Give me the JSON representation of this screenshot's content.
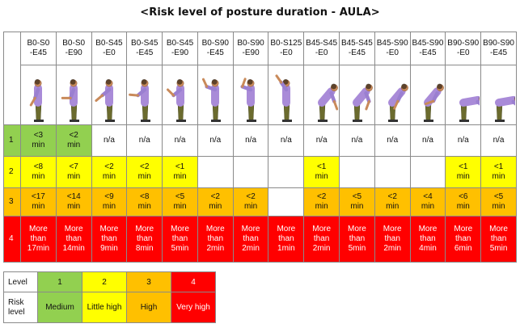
{
  "title": "<Risk level of posture duration - AULA>",
  "columns": [
    {
      "code": "B0-S0\n-E45"
    },
    {
      "code": "B0-S0\n-E90"
    },
    {
      "code": "B0-S45\n-E0"
    },
    {
      "code": "B0-S45\n-E45"
    },
    {
      "code": "B0-S45\n-E90"
    },
    {
      "code": "B0-S90\n-E45"
    },
    {
      "code": "B0-S90\n-E90"
    },
    {
      "code": "B0-S125\n-E0"
    },
    {
      "code": "B45-S45\n-E0"
    },
    {
      "code": "B45-S45\n-E45"
    },
    {
      "code": "B45-S90\n-E0"
    },
    {
      "code": "B45-S90\n-E45"
    },
    {
      "code": "B90-S90\n-E0"
    },
    {
      "code": "B90-S90\n-E45"
    }
  ],
  "rows": [
    {
      "level": "1",
      "cells": [
        {
          "text": "<3\nmin",
          "color": "#92d050"
        },
        {
          "text": "<2\nmin",
          "color": "#92d050"
        },
        {
          "text": "n/a",
          "color": "#ffffff"
        },
        {
          "text": "n/a",
          "color": "#ffffff"
        },
        {
          "text": "n/a",
          "color": "#ffffff"
        },
        {
          "text": "n/a",
          "color": "#ffffff"
        },
        {
          "text": "n/a",
          "color": "#ffffff"
        },
        {
          "text": "n/a",
          "color": "#ffffff"
        },
        {
          "text": "n/a",
          "color": "#ffffff"
        },
        {
          "text": "n/a",
          "color": "#ffffff"
        },
        {
          "text": "n/a",
          "color": "#ffffff"
        },
        {
          "text": "n/a",
          "color": "#ffffff"
        },
        {
          "text": "n/a",
          "color": "#ffffff"
        },
        {
          "text": "n/a",
          "color": "#ffffff"
        }
      ]
    },
    {
      "level": "2",
      "cells": [
        {
          "text": "<8\nmin",
          "color": "#ffff00"
        },
        {
          "text": "<7\nmin",
          "color": "#ffff00"
        },
        {
          "text": "<2\nmin",
          "color": "#ffff00"
        },
        {
          "text": "<2\nmin",
          "color": "#ffff00"
        },
        {
          "text": "<1\nmin",
          "color": "#ffff00"
        },
        {
          "text": "",
          "color": "#ffffff"
        },
        {
          "text": "",
          "color": "#ffffff"
        },
        {
          "text": "",
          "color": "#ffffff"
        },
        {
          "text": "<1\nmin",
          "color": "#ffff00"
        },
        {
          "text": "",
          "color": "#ffffff"
        },
        {
          "text": "",
          "color": "#ffffff"
        },
        {
          "text": "",
          "color": "#ffffff"
        },
        {
          "text": "<1\nmin",
          "color": "#ffff00"
        },
        {
          "text": "<1\nmin",
          "color": "#ffff00"
        }
      ]
    },
    {
      "level": "3",
      "cells": [
        {
          "text": "<17\nmin",
          "color": "#ffc000"
        },
        {
          "text": "<14\nmin",
          "color": "#ffc000"
        },
        {
          "text": "<9\nmin",
          "color": "#ffc000"
        },
        {
          "text": "<8\nmin",
          "color": "#ffc000"
        },
        {
          "text": "<5\nmin",
          "color": "#ffc000"
        },
        {
          "text": "<2\nmin",
          "color": "#ffc000"
        },
        {
          "text": "<2\nmin",
          "color": "#ffc000"
        },
        {
          "text": "",
          "color": "#ffffff"
        },
        {
          "text": "<2\nmin",
          "color": "#ffc000"
        },
        {
          "text": "<5\nmin",
          "color": "#ffc000"
        },
        {
          "text": "<2\nmin",
          "color": "#ffc000"
        },
        {
          "text": "<4\nmin",
          "color": "#ffc000"
        },
        {
          "text": "<6\nmin",
          "color": "#ffc000"
        },
        {
          "text": "<5\nmin",
          "color": "#ffc000"
        }
      ]
    },
    {
      "level": "4",
      "cells": [
        {
          "text": "More\nthan\n17min",
          "color": "#ff0000"
        },
        {
          "text": "More\nthan\n14min",
          "color": "#ff0000"
        },
        {
          "text": "More\nthan\n9min",
          "color": "#ff0000"
        },
        {
          "text": "More\nthan\n8min",
          "color": "#ff0000"
        },
        {
          "text": "More\nthan\n5min",
          "color": "#ff0000"
        },
        {
          "text": "More\nthan\n2min",
          "color": "#ff0000"
        },
        {
          "text": "More\nthan\n2min",
          "color": "#ff0000"
        },
        {
          "text": "More\nthan\n1min",
          "color": "#ff0000"
        },
        {
          "text": "More\nthan\n2min",
          "color": "#ff0000"
        },
        {
          "text": "More\nthan\n5min",
          "color": "#ff0000"
        },
        {
          "text": "More\nthan\n2min",
          "color": "#ff0000"
        },
        {
          "text": "More\nthan\n4min",
          "color": "#ff0000"
        },
        {
          "text": "More\nthan\n6min",
          "color": "#ff0000"
        },
        {
          "text": "More\nthan\n5min",
          "color": "#ff0000"
        }
      ]
    }
  ],
  "legend": {
    "level_header": "Level",
    "risk_header": "Risk\nlevel",
    "items": [
      {
        "level": "1",
        "risk": "Medium",
        "color": "#92d050"
      },
      {
        "level": "2",
        "risk": "Little high",
        "color": "#ffff00"
      },
      {
        "level": "3",
        "risk": "High",
        "color": "#ffc000"
      },
      {
        "level": "4",
        "risk": "Very high",
        "color": "#ff0000"
      }
    ]
  }
}
